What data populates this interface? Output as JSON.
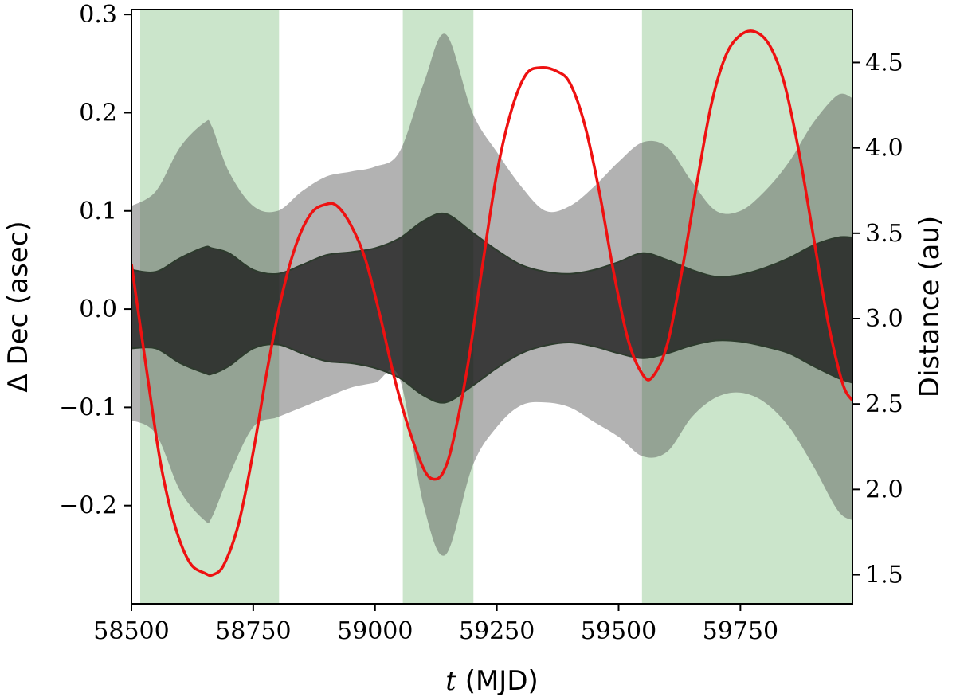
{
  "chart_data": {
    "type": "area",
    "xlabel_var": "t",
    "xlabel_unit": " (MJD)",
    "ylabel_left": "Δ Dec (asec)",
    "ylabel_right": "Distance (au)",
    "xlim": [
      58500,
      59980
    ],
    "ylim_left": [
      -0.3,
      0.305
    ],
    "ylim_right": [
      1.33,
      4.81
    ],
    "x_ticks": [
      58500,
      58750,
      59000,
      59250,
      59500,
      59750
    ],
    "x_tick_labels": [
      "58500",
      "58750",
      "59000",
      "59250",
      "59500",
      "59750"
    ],
    "y_left_ticks": [
      -0.2,
      -0.1,
      0.0,
      0.1,
      0.2,
      0.3
    ],
    "y_left_tick_labels": [
      "−0.2",
      "−0.1",
      "0.0",
      "0.1",
      "0.2",
      "0.3"
    ],
    "y_right_ticks": [
      1.5,
      2.0,
      2.5,
      3.0,
      3.5,
      4.0,
      4.5
    ],
    "y_right_tick_labels": [
      "1.5",
      "2.0",
      "2.5",
      "3.0",
      "3.5",
      "4.0",
      "4.5"
    ],
    "observing_windows": [
      [
        58518,
        58803
      ],
      [
        59057,
        59202
      ],
      [
        59548,
        59980
      ]
    ],
    "x": [
      58500,
      58550,
      58600,
      58650,
      58665,
      58700,
      58750,
      58800,
      58850,
      58900,
      58950,
      59000,
      59050,
      59100,
      59145,
      59200,
      59250,
      59300,
      59350,
      59400,
      59450,
      59500,
      59550,
      59600,
      59650,
      59700,
      59750,
      59800,
      59850,
      59900,
      59950,
      59980
    ],
    "series": [
      {
        "name": "",
        "role": "outer_band",
        "lower": [
          -0.113,
          -0.127,
          -0.185,
          -0.215,
          -0.212,
          -0.17,
          -0.12,
          -0.11,
          -0.1,
          -0.09,
          -0.08,
          -0.075,
          -0.07,
          -0.2,
          -0.25,
          -0.16,
          -0.12,
          -0.098,
          -0.095,
          -0.1,
          -0.115,
          -0.13,
          -0.15,
          -0.145,
          -0.11,
          -0.09,
          -0.085,
          -0.095,
          -0.12,
          -0.16,
          -0.205,
          -0.215
        ],
        "upper": [
          0.105,
          0.12,
          0.165,
          0.19,
          0.186,
          0.14,
          0.105,
          0.1,
          0.12,
          0.135,
          0.14,
          0.145,
          0.16,
          0.23,
          0.28,
          0.2,
          0.16,
          0.125,
          0.1,
          0.105,
          0.125,
          0.15,
          0.17,
          0.165,
          0.13,
          0.1,
          0.1,
          0.12,
          0.15,
          0.19,
          0.218,
          0.215
        ]
      },
      {
        "name": "",
        "role": "inner_band",
        "lower": [
          -0.04,
          -0.04,
          -0.055,
          -0.065,
          -0.066,
          -0.058,
          -0.04,
          -0.036,
          -0.045,
          -0.053,
          -0.055,
          -0.06,
          -0.07,
          -0.088,
          -0.095,
          -0.078,
          -0.06,
          -0.045,
          -0.037,
          -0.034,
          -0.038,
          -0.045,
          -0.05,
          -0.045,
          -0.037,
          -0.032,
          -0.033,
          -0.038,
          -0.045,
          -0.058,
          -0.07,
          -0.075
        ],
        "upper": [
          0.04,
          0.038,
          0.052,
          0.063,
          0.062,
          0.057,
          0.04,
          0.036,
          0.045,
          0.055,
          0.058,
          0.062,
          0.072,
          0.09,
          0.097,
          0.078,
          0.06,
          0.045,
          0.038,
          0.036,
          0.04,
          0.048,
          0.057,
          0.05,
          0.04,
          0.033,
          0.035,
          0.042,
          0.052,
          0.065,
          0.073,
          0.073
        ]
      },
      {
        "name": "",
        "role": "distance_curve",
        "axis": "right",
        "x": [
          58500,
          58530,
          58560,
          58590,
          58620,
          58650,
          58667,
          58690,
          58720,
          58750,
          58780,
          58810,
          58840,
          58870,
          58900,
          58922,
          58950,
          58980,
          59010,
          59040,
          59070,
          59100,
          59120,
          59140,
          59160,
          59190,
          59220,
          59250,
          59280,
          59310,
          59340,
          59372,
          59400,
          59430,
          59460,
          59490,
          59520,
          59550,
          59570,
          59600,
          59630,
          59660,
          59690,
          59720,
          59750,
          59780,
          59810,
          59840,
          59870,
          59900,
          59930,
          59960,
          59980
        ],
        "values": [
          3.32,
          2.72,
          2.15,
          1.78,
          1.57,
          1.51,
          1.5,
          1.56,
          1.8,
          2.22,
          2.72,
          3.15,
          3.45,
          3.62,
          3.67,
          3.66,
          3.55,
          3.35,
          3.02,
          2.65,
          2.35,
          2.12,
          2.06,
          2.1,
          2.28,
          2.72,
          3.3,
          3.85,
          4.22,
          4.43,
          4.47,
          4.45,
          4.38,
          4.14,
          3.75,
          3.27,
          2.87,
          2.67,
          2.66,
          2.85,
          3.28,
          3.78,
          4.25,
          4.54,
          4.66,
          4.68,
          4.6,
          4.38,
          3.98,
          3.48,
          2.98,
          2.62,
          2.52
        ]
      }
    ],
    "colors": {
      "window_fill": "#cbe5cb",
      "outer_band": "#4d4d4d",
      "outer_band_opacity": 0.43,
      "inner_band": "#141414",
      "inner_band_opacity": 0.75,
      "band_edge": "#2d3b2d",
      "distance_curve": "#ee1111",
      "axis": "#000000"
    }
  }
}
